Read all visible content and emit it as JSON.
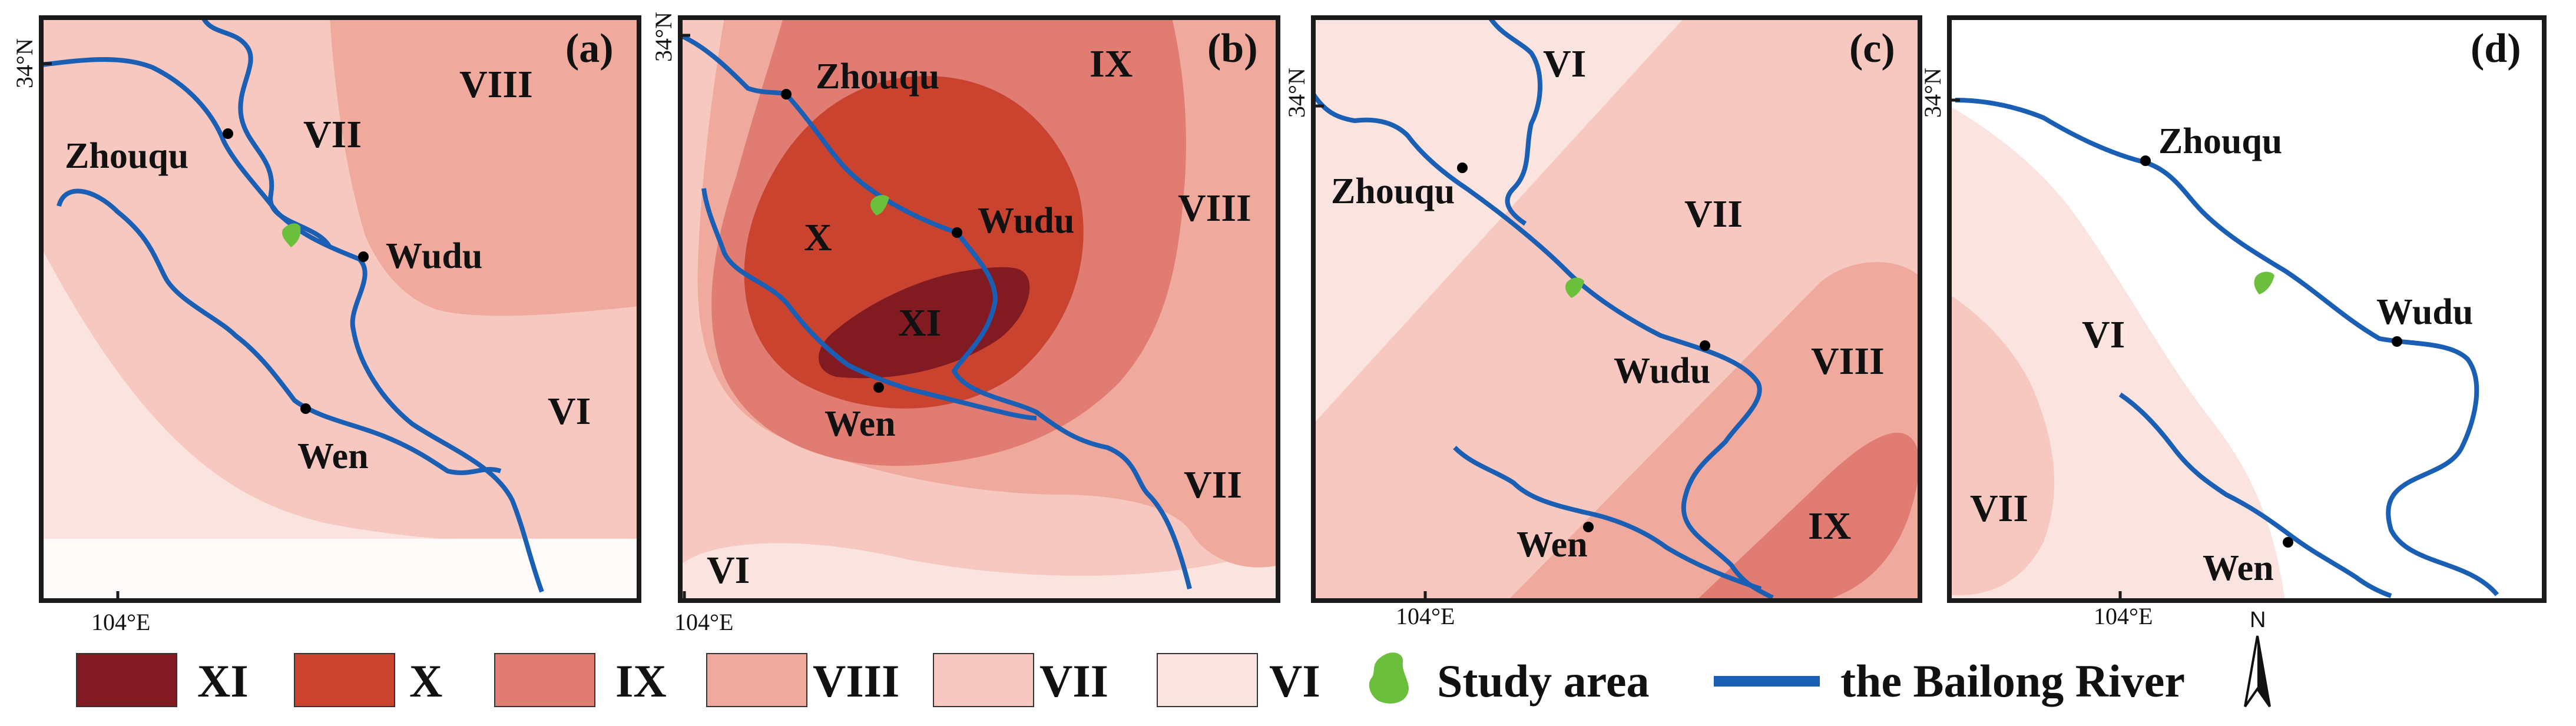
{
  "colors": {
    "XI": "#821a21",
    "X": "#c9432f",
    "IX": "#e07c71",
    "VIII": "#efaa9d",
    "VII": "#f6c8bf",
    "VI": "#fbe4df",
    "study_area": "#6cbf3c",
    "river": "#1a5fb4",
    "frame": "#1a1a1a"
  },
  "panels": {
    "a": {
      "tag": "(a)",
      "lat": "34°N",
      "lon": "104°E",
      "towns": {
        "zhouqu": "Zhouqu",
        "wudu": "Wudu",
        "wen": "Wen"
      },
      "zones": {
        "viii": "VIII",
        "vii": "VII",
        "vi": "VI"
      }
    },
    "b": {
      "tag": "(b)",
      "lat": "34°N",
      "lon": "104°E",
      "towns": {
        "zhouqu": "Zhouqu",
        "wudu": "Wudu",
        "wen": "Wen"
      },
      "zones": {
        "ix": "IX",
        "viii": "VIII",
        "vii": "VII",
        "vi": "VI",
        "x": "X",
        "xi": "XI"
      }
    },
    "c": {
      "tag": "(c)",
      "lat": "34°N",
      "lon": "104°E",
      "towns": {
        "zhouqu": "Zhouqu",
        "wudu": "Wudu",
        "wen": "Wen"
      },
      "zones": {
        "vi": "VI",
        "vii": "VII",
        "viii": "VIII",
        "ix": "IX"
      }
    },
    "d": {
      "tag": "(d)",
      "lat": "34°N",
      "lon": "104°E",
      "towns": {
        "zhouqu": "Zhouqu",
        "wudu": "Wudu",
        "wen": "Wen"
      },
      "zones": {
        "vi": "VI",
        "vii": "VII"
      }
    }
  },
  "legend": {
    "xi": "XI",
    "x": "X",
    "ix": "IX",
    "viii": "VIII",
    "vii": "VII",
    "vi": "VI",
    "study_area": "Study area",
    "river": "the Bailong River",
    "north": "N"
  }
}
